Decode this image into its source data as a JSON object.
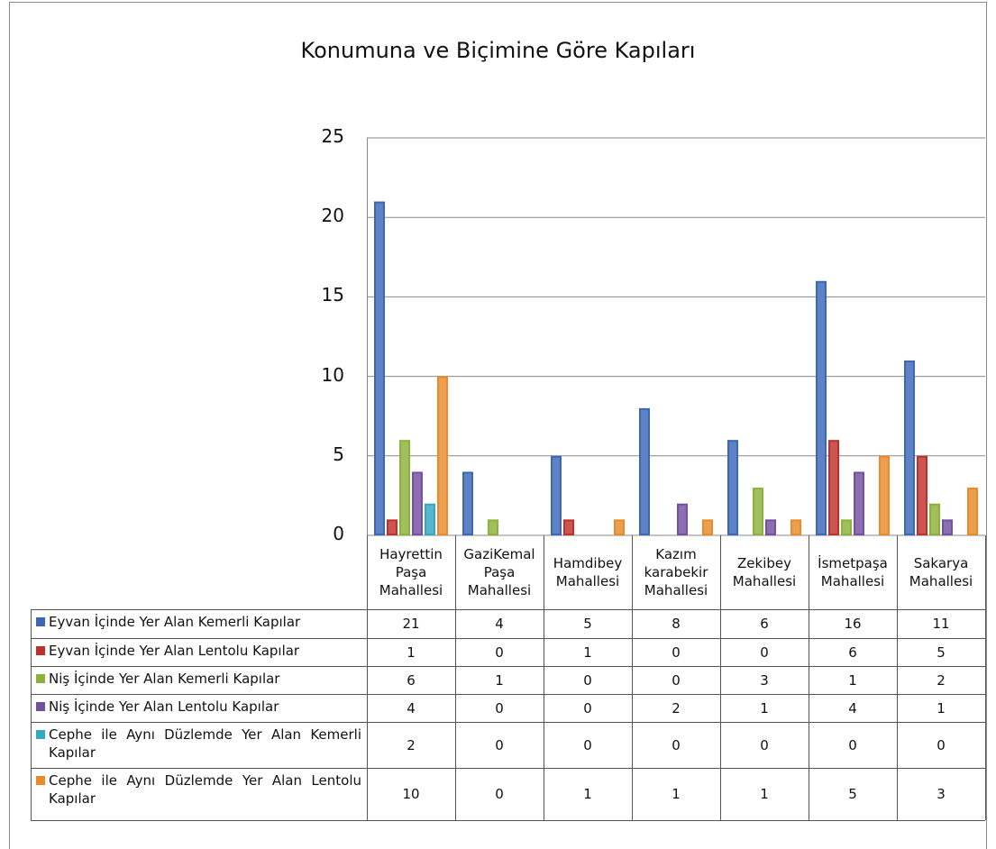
{
  "chart_data": {
    "type": "bar",
    "title": "Konumuna ve Biçimine Göre Kapıları",
    "categories": [
      "Hayrettin Paşa Mahallesi",
      "GaziKemal Paşa Mahallesi",
      "Hamdibey Mahallesi",
      "Kazım karabekir Mahallesi",
      "Zekibey Mahallesi",
      "İsmetpaşa Mahallesi",
      "Sakarya Mahallesi"
    ],
    "series": [
      {
        "name": "Eyvan İçinde Yer Alan Kemerli Kapılar",
        "color": "#3a68b7",
        "values": [
          21,
          4,
          5,
          8,
          6,
          16,
          11
        ]
      },
      {
        "name": "Eyvan İçinde Yer Alan Lentolu Kapılar",
        "color": "#c0302b",
        "values": [
          1,
          0,
          1,
          0,
          0,
          6,
          5
        ]
      },
      {
        "name": "Niş İçinde Yer Alan Kemerli Kapılar",
        "color": "#8db23a",
        "values": [
          6,
          1,
          0,
          0,
          3,
          1,
          2
        ]
      },
      {
        "name": "Niş İçinde Yer Alan Lentolu Kapılar",
        "color": "#7350a0",
        "values": [
          4,
          0,
          0,
          2,
          1,
          4,
          1
        ]
      },
      {
        "name": "Cephe ile Aynı Düzlemde Yer Alan Kemerli Kapılar",
        "color": "#34a8c4",
        "values": [
          2,
          0,
          0,
          0,
          0,
          0,
          0
        ]
      },
      {
        "name": "Cephe ile Aynı Düzlemde Yer Alan Lentolu Kapılar",
        "color": "#ea8a2a",
        "values": [
          10,
          0,
          1,
          1,
          1,
          5,
          3
        ]
      }
    ],
    "ylim": [
      0,
      25
    ],
    "yticks": [
      0,
      5,
      10,
      15,
      20,
      25
    ],
    "grid": true
  }
}
